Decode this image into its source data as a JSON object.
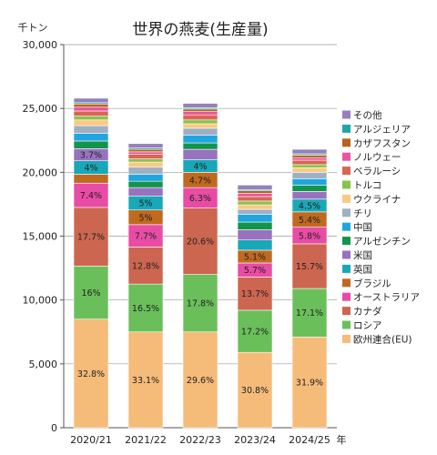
{
  "chart_data": {
    "type": "bar",
    "stacked": true,
    "title": "世界の燕麦(生産量)",
    "ylabel": "千トン",
    "xlabel": "年",
    "ylim": [
      0,
      30000
    ],
    "yticks": [
      0,
      5000,
      10000,
      15000,
      20000,
      25000,
      30000
    ],
    "ytick_labels": [
      "0",
      "5,000",
      "10,000",
      "15,000",
      "20,000",
      "25,000",
      "30,000"
    ],
    "grid": true,
    "legend_position": "right",
    "categories": [
      "2020/21",
      "2021/22",
      "2022/23",
      "2023/24",
      "2024/25"
    ],
    "series": [
      {
        "name": "欧州連合(EU)",
        "color": "#f5bb79",
        "values": [
          8500,
          7500,
          7500,
          5900,
          7100
        ],
        "labels": [
          "32.8%",
          "33.1%",
          "29.6%",
          "30.8%",
          "31.9%"
        ]
      },
      {
        "name": "ロシア",
        "color": "#6abf5a",
        "values": [
          4150,
          3750,
          4500,
          3300,
          3800
        ],
        "labels": [
          "16%",
          "16.5%",
          "17.8%",
          "17.2%",
          "17.1%"
        ]
      },
      {
        "name": "カナダ",
        "color": "#cc6650",
        "values": [
          4600,
          2900,
          5200,
          2600,
          3500
        ],
        "labels": [
          "17.7%",
          "12.8%",
          "20.6%",
          "13.7%",
          "15.7%"
        ]
      },
      {
        "name": "オーストラリア",
        "color": "#e84ca4",
        "values": [
          1900,
          1750,
          1600,
          1100,
          1300
        ],
        "labels": [
          "7.4%",
          "7.7%",
          "6.3%",
          "5.7%",
          "5.8%"
        ]
      },
      {
        "name": "ブラジル",
        "color": "#c06a20",
        "values": [
          700,
          1150,
          1200,
          1000,
          1200
        ],
        "labels": [
          "",
          "5%",
          "4.7%",
          "5.1%",
          "5.4%"
        ]
      },
      {
        "name": "英国",
        "color": "#18a8b8",
        "values": [
          1050,
          1100,
          1000,
          800,
          1000
        ],
        "labels": [
          "4%",
          "5%",
          "4%",
          "",
          "4.5%"
        ]
      },
      {
        "name": "米国",
        "color": "#9872bf",
        "values": [
          950,
          650,
          800,
          800,
          600
        ],
        "labels": [
          "3.7%",
          "",
          "",
          "",
          ""
        ]
      },
      {
        "name": "アルゼンチン",
        "color": "#13944a",
        "values": [
          600,
          500,
          500,
          600,
          500
        ],
        "labels": [
          "",
          "",
          "",
          "",
          ""
        ]
      },
      {
        "name": "中国",
        "color": "#1fa6e0",
        "values": [
          600,
          550,
          600,
          600,
          500
        ],
        "labels": [
          "",
          "",
          "",
          "",
          ""
        ]
      },
      {
        "name": "チリ",
        "color": "#9fb0c3",
        "values": [
          600,
          550,
          550,
          400,
          500
        ],
        "labels": [
          "",
          "",
          "",
          "",
          ""
        ]
      },
      {
        "name": "ウクライナ",
        "color": "#fac983",
        "values": [
          450,
          400,
          350,
          350,
          350
        ],
        "labels": [
          "",
          "",
          "",
          "",
          ""
        ]
      },
      {
        "name": "トルコ",
        "color": "#8ac34a",
        "values": [
          300,
          250,
          300,
          300,
          250
        ],
        "labels": [
          "",
          "",
          "",
          "",
          ""
        ]
      },
      {
        "name": "ベラルーシ",
        "color": "#d96553",
        "values": [
          400,
          350,
          400,
          350,
          350
        ],
        "labels": [
          "",
          "",
          "",
          "",
          ""
        ]
      },
      {
        "name": "ノルウェー",
        "color": "#e9549e",
        "values": [
          300,
          200,
          250,
          250,
          200
        ],
        "labels": [
          "",
          "",
          "",
          "",
          ""
        ]
      },
      {
        "name": "カザフスタン",
        "color": "#b5651d",
        "values": [
          250,
          200,
          200,
          200,
          200
        ],
        "labels": [
          "",
          "",
          "",
          "",
          ""
        ]
      },
      {
        "name": "アルジェリア",
        "color": "#1ba7a5",
        "values": [
          100,
          100,
          100,
          100,
          100
        ],
        "labels": [
          "",
          "",
          "",
          "",
          ""
        ]
      },
      {
        "name": "その他",
        "color": "#9580bd",
        "values": [
          350,
          350,
          350,
          350,
          350
        ],
        "labels": [
          "",
          "",
          "",
          "",
          ""
        ]
      }
    ]
  }
}
